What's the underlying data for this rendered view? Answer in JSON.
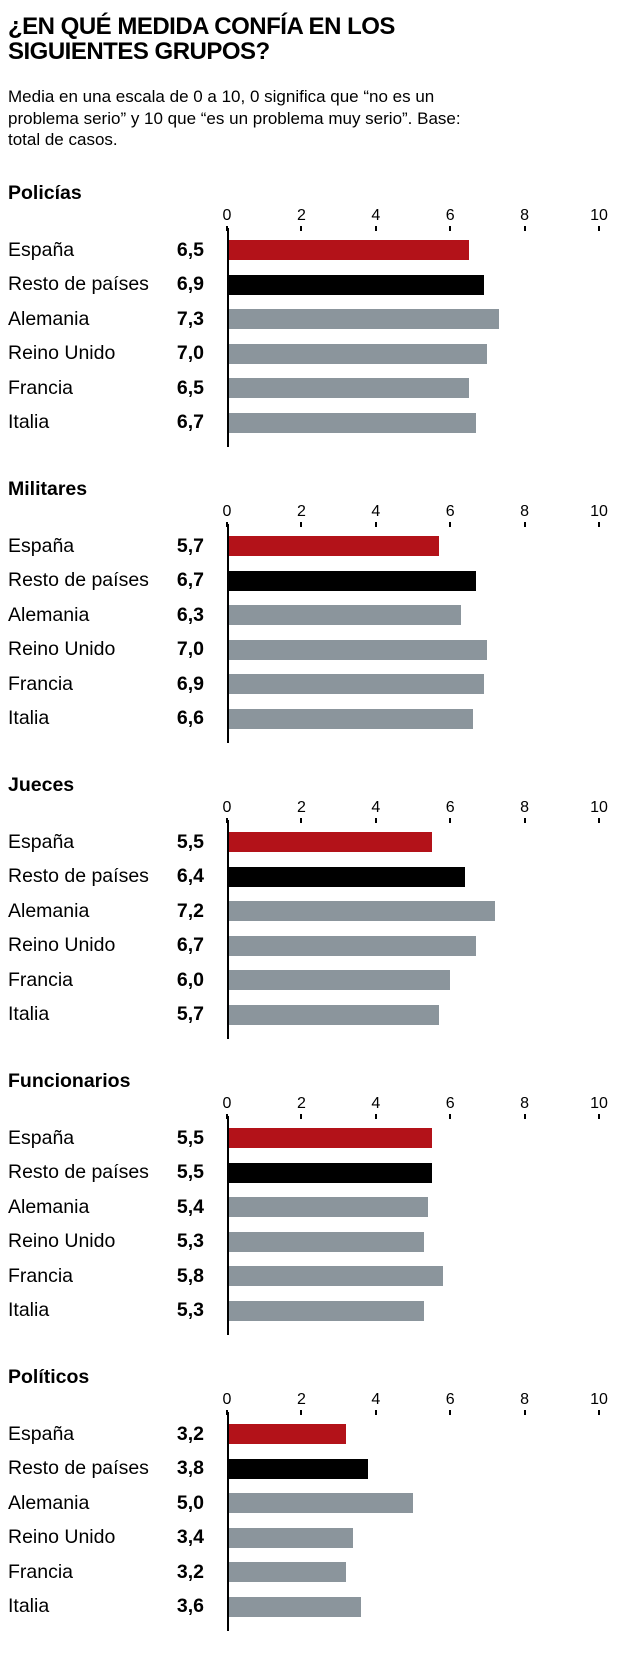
{
  "header": {
    "title": "¿EN QUÉ MEDIDA CONFÍA EN LOS\nSIGUIENTES GRUPOS?",
    "subtitle": "Media en una escala de 0 a 10, 0 significa que “no es un\nproblema serio” y 10 que “es un problema muy serio”. Base:\ntotal de casos."
  },
  "palette": {
    "espana": "#b31219",
    "resto_de_paises": "#000000",
    "otros": "#8b959c",
    "axis_line": "#000000",
    "text": "#000000",
    "background": "#ffffff"
  },
  "axis": {
    "min": 0,
    "max": 10,
    "tick_labels": [
      "0",
      "2",
      "4",
      "6",
      "8",
      "10"
    ]
  },
  "row_color_keys": [
    "espana",
    "resto_de_paises",
    "otros",
    "otros",
    "otros",
    "otros"
  ],
  "chart_data": [
    {
      "type": "bar",
      "title": "Policías",
      "categories": [
        "España",
        "Resto de países",
        "Alemania",
        "Reino Unido",
        "Francia",
        "Italia"
      ],
      "values": [
        6.5,
        6.9,
        7.3,
        7.0,
        6.5,
        6.7
      ],
      "value_labels": [
        "6,5",
        "6,9",
        "7,3",
        "7,0",
        "6,5",
        "6,7"
      ],
      "xlabel": "",
      "ylabel": "",
      "xlim": [
        0,
        10
      ],
      "tick_labels": [
        "0",
        "2",
        "4",
        "6",
        "8",
        "10"
      ],
      "grid": false,
      "legend": false
    },
    {
      "type": "bar",
      "title": "Militares",
      "categories": [
        "España",
        "Resto de países",
        "Alemania",
        "Reino Unido",
        "Francia",
        "Italia"
      ],
      "values": [
        5.7,
        6.7,
        6.3,
        7.0,
        6.9,
        6.6
      ],
      "value_labels": [
        "5,7",
        "6,7",
        "6,3",
        "7,0",
        "6,9",
        "6,6"
      ],
      "xlabel": "",
      "ylabel": "",
      "xlim": [
        0,
        10
      ],
      "tick_labels": [
        "0",
        "2",
        "4",
        "6",
        "8",
        "10"
      ],
      "grid": false,
      "legend": false
    },
    {
      "type": "bar",
      "title": "Jueces",
      "categories": [
        "España",
        "Resto de países",
        "Alemania",
        "Reino Unido",
        "Francia",
        "Italia"
      ],
      "values": [
        5.5,
        6.4,
        7.2,
        6.7,
        6.0,
        5.7
      ],
      "value_labels": [
        "5,5",
        "6,4",
        "7,2",
        "6,7",
        "6,0",
        "5,7"
      ],
      "xlabel": "",
      "ylabel": "",
      "xlim": [
        0,
        10
      ],
      "tick_labels": [
        "0",
        "2",
        "4",
        "6",
        "8",
        "10"
      ],
      "grid": false,
      "legend": false
    },
    {
      "type": "bar",
      "title": "Funcionarios",
      "categories": [
        "España",
        "Resto de países",
        "Alemania",
        "Reino Unido",
        "Francia",
        "Italia"
      ],
      "values": [
        5.5,
        5.5,
        5.4,
        5.3,
        5.8,
        5.3
      ],
      "value_labels": [
        "5,5",
        "5,5",
        "5,4",
        "5,3",
        "5,8",
        "5,3"
      ],
      "xlabel": "",
      "ylabel": "",
      "xlim": [
        0,
        10
      ],
      "tick_labels": [
        "0",
        "2",
        "4",
        "6",
        "8",
        "10"
      ],
      "grid": false,
      "legend": false
    },
    {
      "type": "bar",
      "title": "Políticos",
      "categories": [
        "España",
        "Resto de países",
        "Alemania",
        "Reino Unido",
        "Francia",
        "Italia"
      ],
      "values": [
        3.2,
        3.8,
        5.0,
        3.4,
        3.2,
        3.6
      ],
      "value_labels": [
        "3,2",
        "3,8",
        "5,0",
        "3,4",
        "3,2",
        "3,6"
      ],
      "xlabel": "",
      "ylabel": "",
      "xlim": [
        0,
        10
      ],
      "tick_labels": [
        "0",
        "2",
        "4",
        "6",
        "8",
        "10"
      ],
      "grid": false,
      "legend": false
    }
  ]
}
